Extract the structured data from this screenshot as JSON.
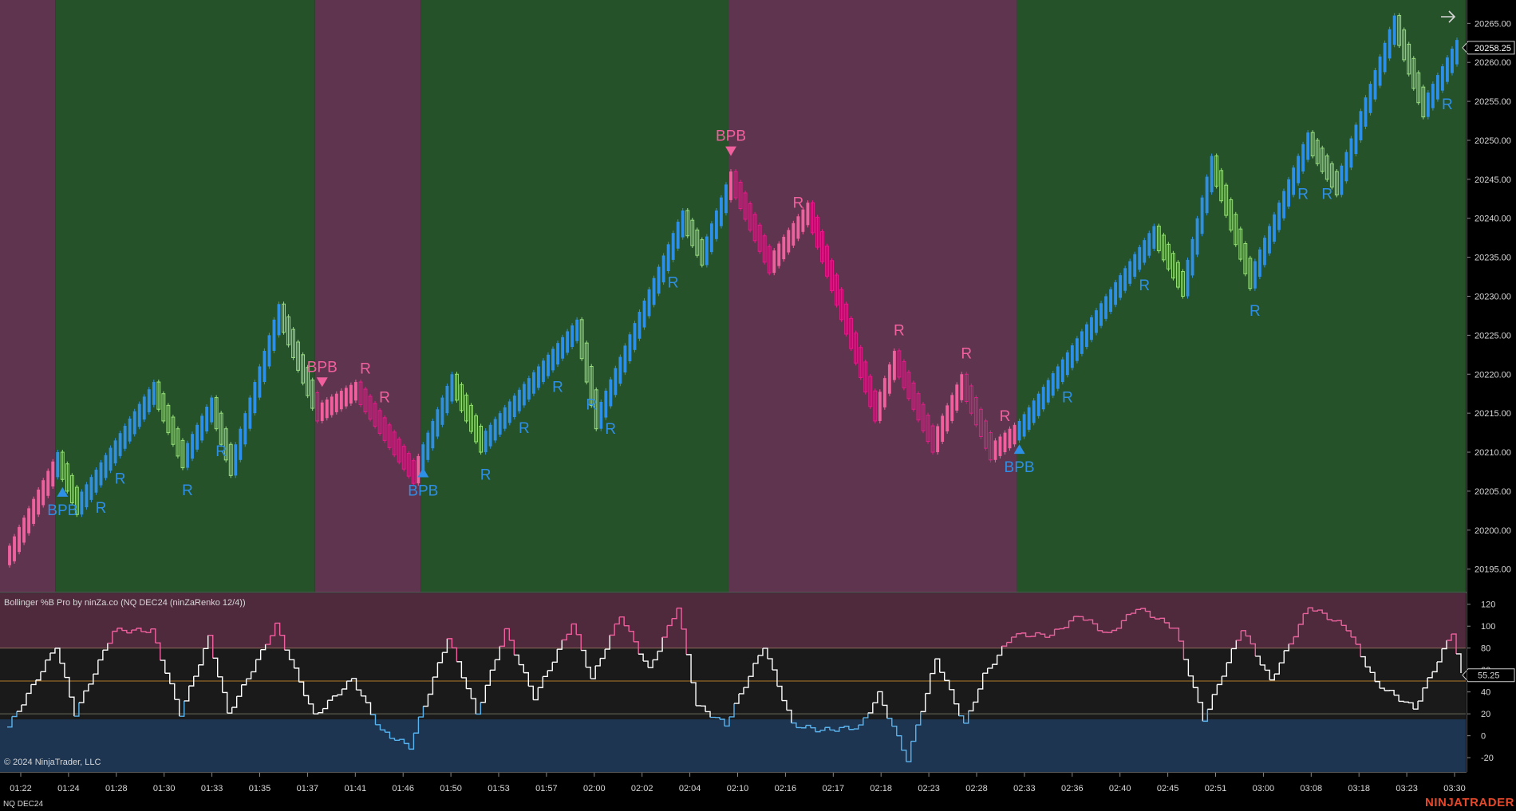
{
  "instrument": "NQ DEC24",
  "indicator_title": "Bollinger %B Pro by ninZa.co (NQ DEC24 (ninZaRenko 12/4))",
  "copyright": "© 2024 NinjaTrader, LLC",
  "brand": {
    "left": "NINJA",
    "right": "TRADER"
  },
  "colors": {
    "bg_bull": "#26522a",
    "bg_bear": "#5f344e",
    "bar_blue": "#2e8fe6",
    "bar_green": "#96e07a",
    "bar_pink": "#f0609e",
    "bar_magenta": "#e8198a",
    "osc_pink": "#f0609e",
    "osc_white": "#ffffff",
    "osc_blue": "#5ab4f0",
    "zone_upper": "#4e2a3c",
    "zone_lower": "#1d3550",
    "zone_mid": "#1a1a1a"
  },
  "chart_data": [
    {
      "type": "bar",
      "name": "price",
      "ylim": [
        20192,
        20268
      ],
      "ticks": [
        20195,
        20200,
        20205,
        20210,
        20215,
        20220,
        20225,
        20230,
        20235,
        20240,
        20245,
        20250,
        20255,
        20260,
        20265
      ],
      "tick_labels": [
        "20195.00",
        "20200.00",
        "20205.00",
        "20210.00",
        "20215.00",
        "20220.00",
        "20225.00",
        "20230.00",
        "20235.00",
        "20240.00",
        "20245.00",
        "20250.00",
        "20255.00",
        "20260.00",
        "20265.00"
      ],
      "x_labels": [
        "01:22",
        "01:24",
        "01:28",
        "01:30",
        "01:33",
        "01:35",
        "01:37",
        "01:41",
        "01:46",
        "01:50",
        "01:53",
        "01:57",
        "02:00",
        "02:02",
        "02:04",
        "02:10",
        "02:16",
        "02:17",
        "02:18",
        "02:23",
        "02:28",
        "02:33",
        "02:36",
        "02:40",
        "02:45",
        "02:51",
        "03:00",
        "03:08",
        "03:18",
        "03:23",
        "03:30"
      ],
      "last_price": "20258.25",
      "n_bars": 302,
      "zones": [
        {
          "from": 0,
          "to": 10,
          "trend": "bear"
        },
        {
          "from": 10,
          "to": 64,
          "trend": "bull"
        },
        {
          "from": 64,
          "to": 86,
          "trend": "bear"
        },
        {
          "from": 86,
          "to": 150,
          "trend": "bull"
        },
        {
          "from": 150,
          "to": 210,
          "trend": "bear"
        },
        {
          "from": 210,
          "to": 302,
          "trend": "bull"
        }
      ],
      "path": [
        [
          0,
          20197
        ],
        [
          10,
          20209
        ],
        [
          14,
          20203
        ],
        [
          30,
          20218
        ],
        [
          36,
          20209
        ],
        [
          42,
          20216
        ],
        [
          46,
          20208
        ],
        [
          56,
          20228
        ],
        [
          64,
          20215
        ],
        [
          72,
          20218
        ],
        [
          84,
          20207
        ],
        [
          92,
          20219
        ],
        [
          98,
          20211
        ],
        [
          118,
          20226
        ],
        [
          122,
          20214
        ],
        [
          140,
          20240
        ],
        [
          144,
          20235
        ],
        [
          150,
          20245
        ],
        [
          158,
          20234
        ],
        [
          166,
          20241
        ],
        [
          180,
          20215
        ],
        [
          184,
          20222
        ],
        [
          192,
          20211
        ],
        [
          198,
          20219
        ],
        [
          204,
          20210
        ],
        [
          210,
          20213
        ],
        [
          218,
          20220
        ],
        [
          238,
          20238
        ],
        [
          244,
          20231
        ],
        [
          250,
          20247
        ],
        [
          258,
          20232
        ],
        [
          270,
          20250
        ],
        [
          276,
          20244
        ],
        [
          288,
          20265
        ],
        [
          294,
          20254
        ],
        [
          302,
          20263
        ]
      ],
      "signals": [
        {
          "bar": 11,
          "label": "BPB",
          "dir": "up"
        },
        {
          "bar": 18,
          "label": "R",
          "dir": "up"
        },
        {
          "bar": 22,
          "label": "R",
          "dir": "up"
        },
        {
          "bar": 36,
          "label": "R",
          "dir": "up"
        },
        {
          "bar": 43,
          "label": "R",
          "dir": "up"
        },
        {
          "bar": 65,
          "label": "BPB",
          "dir": "down"
        },
        {
          "bar": 73,
          "label": "R",
          "dir": "down"
        },
        {
          "bar": 77,
          "label": "R",
          "dir": "down"
        },
        {
          "bar": 86,
          "label": "BPB",
          "dir": "up"
        },
        {
          "bar": 98,
          "label": "R",
          "dir": "up"
        },
        {
          "bar": 106,
          "label": "R",
          "dir": "up"
        },
        {
          "bar": 113,
          "label": "R",
          "dir": "up"
        },
        {
          "bar": 120,
          "label": "R",
          "dir": "up"
        },
        {
          "bar": 124,
          "label": "R",
          "dir": "up"
        },
        {
          "bar": 137,
          "label": "R",
          "dir": "up"
        },
        {
          "bar": 150,
          "label": "BPB",
          "dir": "down"
        },
        {
          "bar": 163,
          "label": "R",
          "dir": "down"
        },
        {
          "bar": 184,
          "label": "R",
          "dir": "down"
        },
        {
          "bar": 198,
          "label": "R",
          "dir": "down"
        },
        {
          "bar": 206,
          "label": "R",
          "dir": "down"
        },
        {
          "bar": 210,
          "label": "BPB",
          "dir": "up"
        },
        {
          "bar": 219,
          "label": "R",
          "dir": "up"
        },
        {
          "bar": 235,
          "label": "R",
          "dir": "up"
        },
        {
          "bar": 258,
          "label": "R",
          "dir": "up"
        },
        {
          "bar": 268,
          "label": "R",
          "dir": "up"
        },
        {
          "bar": 273,
          "label": "R",
          "dir": "up"
        },
        {
          "bar": 298,
          "label": "R",
          "dir": "up"
        }
      ]
    },
    {
      "type": "line",
      "name": "Bollinger %B",
      "ylim": [
        -33,
        130
      ],
      "ticks": [
        -20,
        0,
        20,
        40,
        60,
        80,
        100,
        120
      ],
      "tick_labels": [
        "-20",
        "0",
        "20",
        "40",
        "60",
        "80",
        "100",
        "120"
      ],
      "levels": [
        80,
        50,
        20
      ],
      "last_value": "55.25",
      "path": [
        [
          0,
          8
        ],
        [
          10,
          82
        ],
        [
          14,
          20
        ],
        [
          22,
          96
        ],
        [
          30,
          96
        ],
        [
          36,
          20
        ],
        [
          42,
          90
        ],
        [
          46,
          20
        ],
        [
          56,
          101
        ],
        [
          64,
          18
        ],
        [
          72,
          52
        ],
        [
          78,
          4
        ],
        [
          84,
          -10
        ],
        [
          92,
          90
        ],
        [
          98,
          20
        ],
        [
          104,
          96
        ],
        [
          110,
          35
        ],
        [
          118,
          103
        ],
        [
          122,
          52
        ],
        [
          128,
          110
        ],
        [
          134,
          60
        ],
        [
          140,
          118
        ],
        [
          144,
          28
        ],
        [
          150,
          10
        ],
        [
          158,
          82
        ],
        [
          164,
          10
        ],
        [
          170,
          5
        ],
        [
          178,
          8
        ],
        [
          182,
          38
        ],
        [
          188,
          -22
        ],
        [
          194,
          70
        ],
        [
          200,
          10
        ],
        [
          204,
          55
        ],
        [
          210,
          92
        ],
        [
          218,
          92
        ],
        [
          224,
          110
        ],
        [
          230,
          92
        ],
        [
          236,
          117
        ],
        [
          244,
          98
        ],
        [
          250,
          15
        ],
        [
          258,
          98
        ],
        [
          264,
          50
        ],
        [
          272,
          118
        ],
        [
          280,
          98
        ],
        [
          286,
          48
        ],
        [
          294,
          25
        ],
        [
          302,
          95
        ],
        [
          304,
          55
        ]
      ]
    }
  ]
}
